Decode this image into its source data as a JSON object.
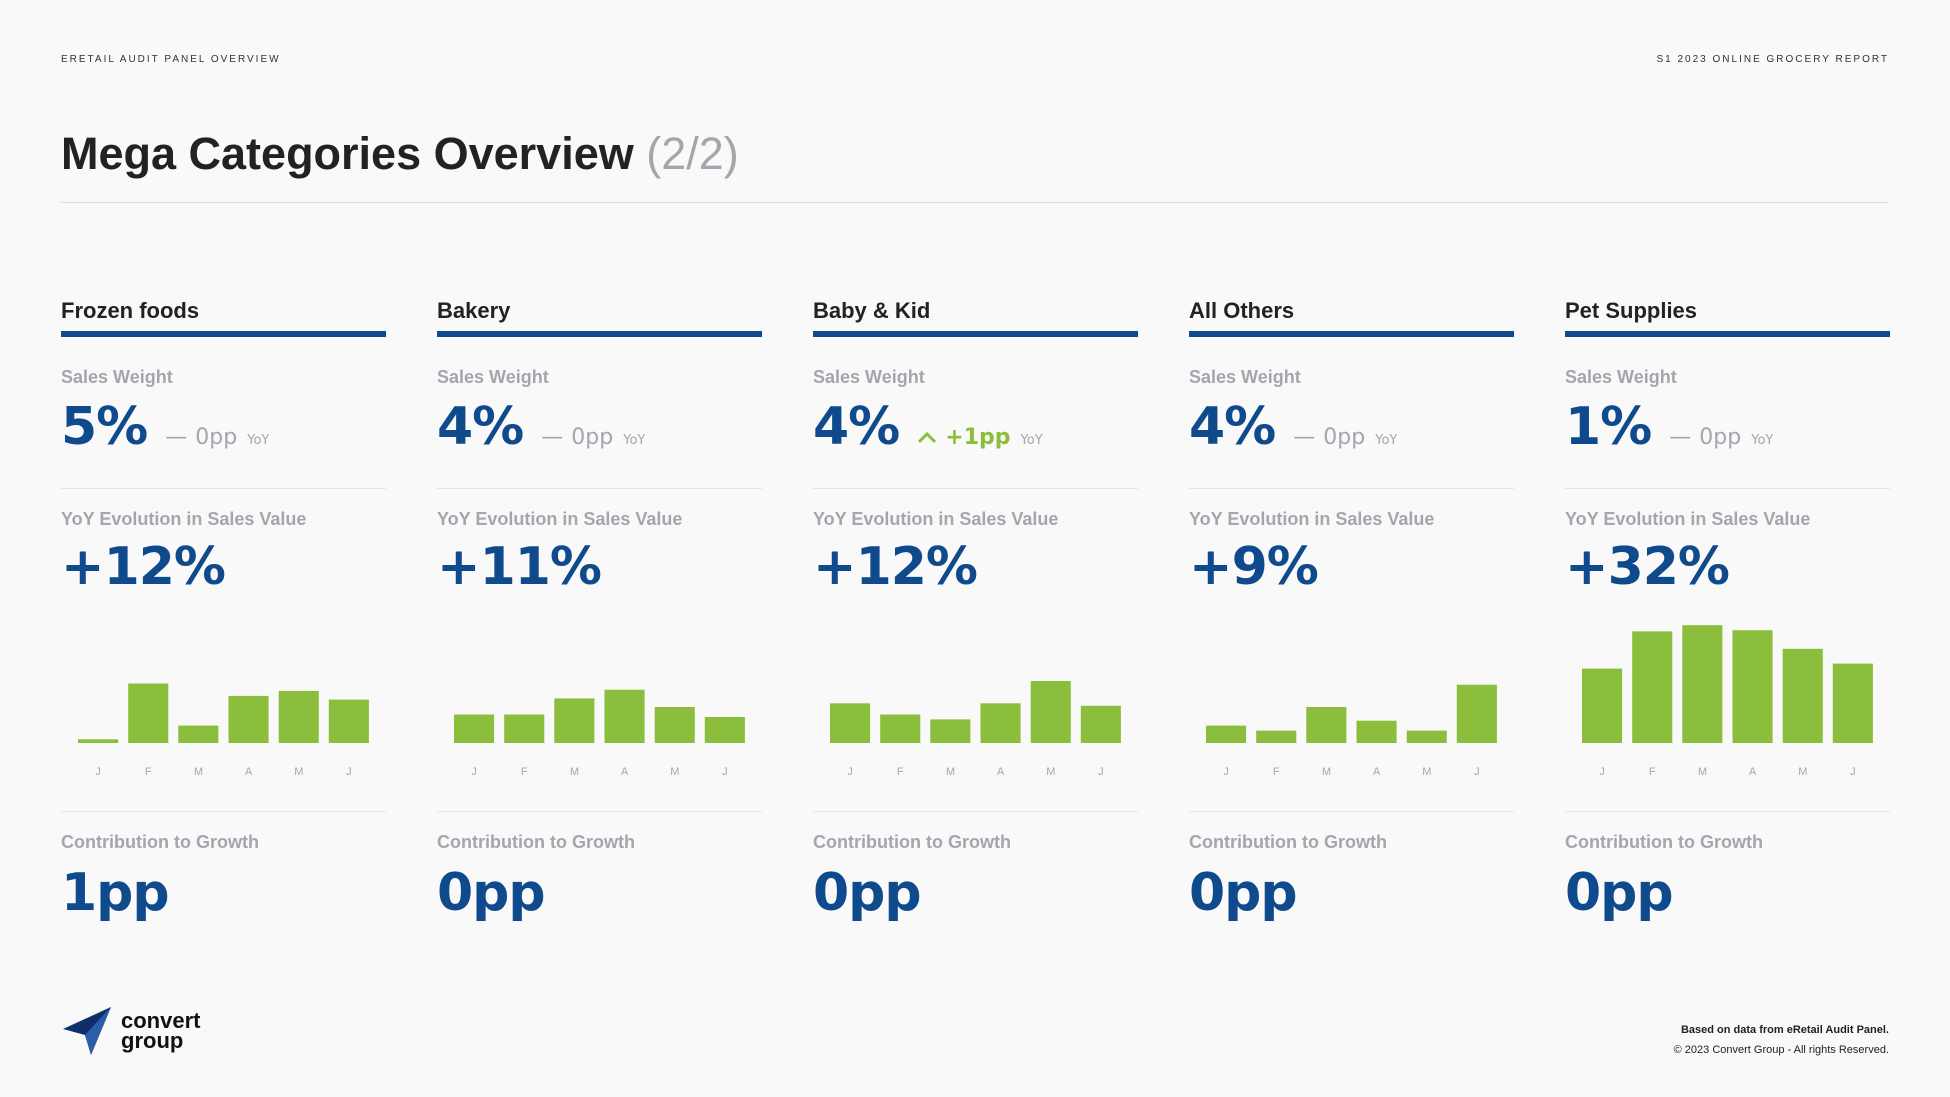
{
  "header": {
    "left": "ERETAIL AUDIT PANEL OVERVIEW",
    "right": "S1 2023 ONLINE GROCERY REPORT",
    "title": "Mega Categories Overview",
    "title_suffix": "(2/2)"
  },
  "labels": {
    "sales_weight": "Sales Weight",
    "yoy_evolution": "YoY Evolution in Sales Value",
    "contribution": "Contribution to Growth",
    "yoy": "YoY"
  },
  "colors": {
    "bar": "#8bbe3d",
    "accent": "#0f4a8c",
    "muted": "#a3a6ad"
  },
  "categories": [
    {
      "name": "Frozen foods",
      "sales_weight": "5%",
      "delta_icon": "dash-icon",
      "delta_symbol": "—",
      "delta": "0pp",
      "yoy_evolution": "+12%",
      "contribution": "1pp"
    },
    {
      "name": "Bakery",
      "sales_weight": "4%",
      "delta_icon": "dash-icon",
      "delta_symbol": "—",
      "delta": "0pp",
      "yoy_evolution": "+11%",
      "contribution": "0pp"
    },
    {
      "name": "Baby & Kid",
      "sales_weight": "4%",
      "delta_icon": "chevron-up-icon",
      "delta_symbol": "^",
      "delta": "+1pp",
      "yoy_evolution": "+12%",
      "contribution": "0pp"
    },
    {
      "name": "All Others",
      "sales_weight": "4%",
      "delta_icon": "dash-icon",
      "delta_symbol": "—",
      "delta": "0pp",
      "yoy_evolution": "+9%",
      "contribution": "0pp"
    },
    {
      "name": "Pet Supplies",
      "sales_weight": "1%",
      "delta_icon": "dash-icon",
      "delta_symbol": "—",
      "delta": "0pp",
      "yoy_evolution": "+32%",
      "contribution": "0pp"
    }
  ],
  "chart_data": [
    {
      "type": "bar",
      "categories": [
        "J",
        "F",
        "M",
        "A",
        "M",
        "J"
      ],
      "values": [
        3,
        48,
        14,
        38,
        42,
        35
      ],
      "ylim": [
        0,
        100
      ],
      "grid": false
    },
    {
      "type": "bar",
      "categories": [
        "J",
        "F",
        "M",
        "A",
        "M",
        "J"
      ],
      "values": [
        23,
        23,
        36,
        43,
        29,
        21
      ],
      "ylim": [
        0,
        100
      ],
      "grid": false
    },
    {
      "type": "bar",
      "categories": [
        "J",
        "F",
        "M",
        "A",
        "M",
        "J"
      ],
      "values": [
        32,
        23,
        19,
        32,
        50,
        30
      ],
      "ylim": [
        0,
        100
      ],
      "grid": false
    },
    {
      "type": "bar",
      "categories": [
        "J",
        "F",
        "M",
        "A",
        "M",
        "J"
      ],
      "values": [
        14,
        10,
        29,
        18,
        10,
        47
      ],
      "ylim": [
        0,
        100
      ],
      "grid": false
    },
    {
      "type": "bar",
      "categories": [
        "J",
        "F",
        "M",
        "A",
        "M",
        "J"
      ],
      "values": [
        60,
        90,
        95,
        91,
        76,
        64
      ],
      "ylim": [
        0,
        100
      ],
      "grid": false
    }
  ],
  "footer": {
    "logo_line1": "convert",
    "logo_line2": "group",
    "source": "Based on data from eRetail Audit Panel.",
    "copyright": "© 2023 Convert Group - All rights Reserved."
  }
}
